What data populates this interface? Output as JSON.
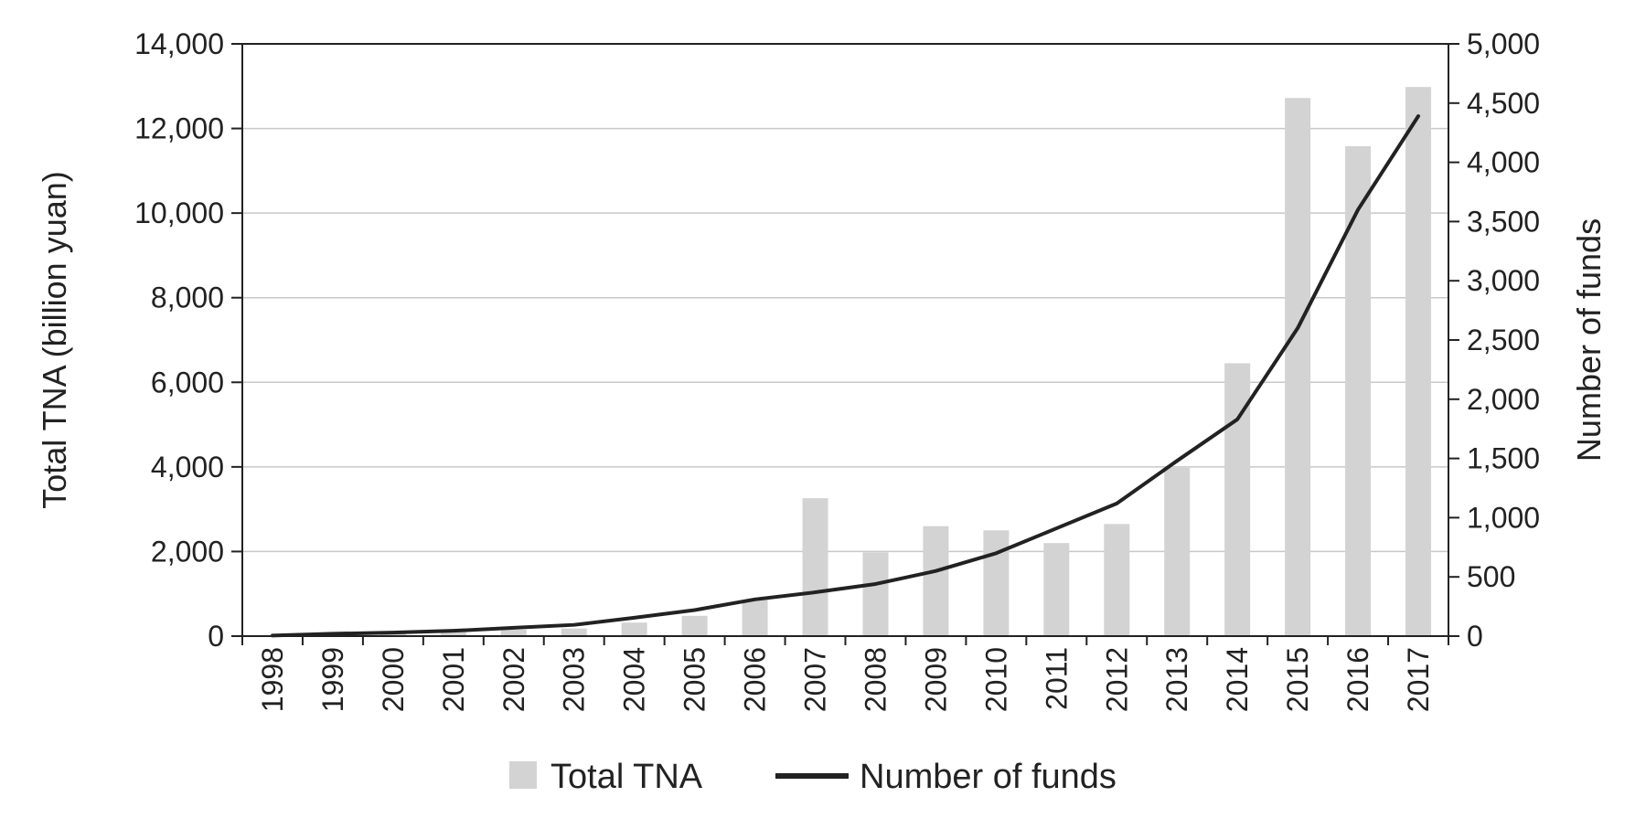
{
  "chart_data": {
    "type": "bar",
    "title": "",
    "categories": [
      "1998",
      "1999",
      "2000",
      "2001",
      "2002",
      "2003",
      "2004",
      "2005",
      "2006",
      "2007",
      "2008",
      "2009",
      "2010",
      "2011",
      "2012",
      "2013",
      "2014",
      "2015",
      "2016",
      "2017"
    ],
    "series": [
      {
        "name": "Total TNA",
        "type": "bar",
        "axis": "left",
        "color": "#d3d3d3",
        "values": [
          10,
          50,
          80,
          100,
          150,
          180,
          320,
          480,
          860,
          3260,
          1980,
          2600,
          2500,
          2200,
          2650,
          3980,
          6450,
          12720,
          11580,
          12980
        ]
      },
      {
        "name": "Number of funds",
        "type": "line",
        "axis": "right",
        "color": "#222222",
        "values": [
          5,
          20,
          30,
          45,
          70,
          95,
          155,
          220,
          310,
          370,
          440,
          550,
          700,
          910,
          1120,
          1480,
          1830,
          2600,
          3600,
          4390
        ]
      }
    ],
    "y_left": {
      "label": "Total TNA (billion yuan)",
      "ylim": [
        0,
        14000
      ],
      "ticks": [
        0,
        2000,
        4000,
        6000,
        8000,
        10000,
        12000,
        14000
      ],
      "tick_labels": [
        "0",
        "2,000",
        "4,000",
        "6,000",
        "8,000",
        "10,000",
        "12,000",
        "14,000"
      ]
    },
    "y_right": {
      "label": "Number of funds",
      "ylim": [
        0,
        5000
      ],
      "ticks": [
        0,
        500,
        1000,
        1500,
        2000,
        2500,
        3000,
        3500,
        4000,
        4500,
        5000
      ],
      "tick_labels": [
        "0",
        "500",
        "1,000",
        "1,500",
        "2,000",
        "2,500",
        "3,000",
        "3,500",
        "4,000",
        "4,500",
        "5,000"
      ]
    },
    "xlabel": "",
    "grid": "horizontal",
    "legend_position": "bottom-center",
    "legend": [
      {
        "label": "Total TNA",
        "kind": "bar",
        "color": "#d3d3d3"
      },
      {
        "label": "Number of funds",
        "kind": "line",
        "color": "#222222"
      }
    ]
  }
}
